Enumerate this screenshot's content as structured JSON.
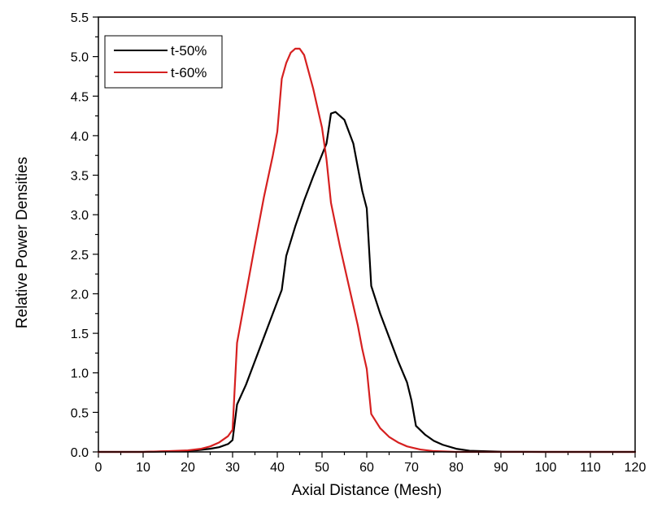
{
  "chart_data": {
    "type": "line",
    "title": "",
    "xlabel": "Axial Distance (Mesh)",
    "ylabel": "Relative Power Densities",
    "xlim": [
      0,
      120
    ],
    "ylim": [
      0,
      5.5
    ],
    "x_ticks": [
      "0",
      "10",
      "20",
      "30",
      "40",
      "50",
      "60",
      "70",
      "80",
      "90",
      "100",
      "110",
      "120"
    ],
    "y_ticks": [
      "0.0",
      "0.5",
      "1.0",
      "1.5",
      "2.0",
      "2.5",
      "3.0",
      "3.5",
      "4.0",
      "4.5",
      "5.0",
      "5.5"
    ],
    "grid": false,
    "legend_position": "top-left",
    "series": [
      {
        "name": "t-50%",
        "color": "#000000",
        "points": [
          [
            0,
            0.0
          ],
          [
            10,
            0.0
          ],
          [
            18,
            0.01
          ],
          [
            22,
            0.02
          ],
          [
            25,
            0.04
          ],
          [
            27,
            0.06
          ],
          [
            29,
            0.1
          ],
          [
            30,
            0.15
          ],
          [
            31,
            0.6
          ],
          [
            33,
            0.85
          ],
          [
            35,
            1.15
          ],
          [
            37,
            1.45
          ],
          [
            39,
            1.75
          ],
          [
            41,
            2.05
          ],
          [
            42,
            2.48
          ],
          [
            44,
            2.85
          ],
          [
            46,
            3.18
          ],
          [
            48,
            3.48
          ],
          [
            50,
            3.76
          ],
          [
            51,
            3.9
          ],
          [
            52,
            4.28
          ],
          [
            53,
            4.3
          ],
          [
            55,
            4.2
          ],
          [
            57,
            3.9
          ],
          [
            58,
            3.6
          ],
          [
            59,
            3.3
          ],
          [
            60,
            3.08
          ],
          [
            61,
            2.1
          ],
          [
            63,
            1.75
          ],
          [
            65,
            1.45
          ],
          [
            67,
            1.15
          ],
          [
            69,
            0.88
          ],
          [
            70,
            0.65
          ],
          [
            71,
            0.33
          ],
          [
            73,
            0.22
          ],
          [
            75,
            0.14
          ],
          [
            77,
            0.09
          ],
          [
            80,
            0.04
          ],
          [
            83,
            0.015
          ],
          [
            90,
            0.003
          ],
          [
            100,
            0.0
          ],
          [
            120,
            0.0
          ]
        ]
      },
      {
        "name": "t-60%",
        "color": "#d62020",
        "points": [
          [
            0,
            0.0
          ],
          [
            10,
            0.0
          ],
          [
            16,
            0.01
          ],
          [
            20,
            0.02
          ],
          [
            23,
            0.04
          ],
          [
            25,
            0.07
          ],
          [
            27,
            0.12
          ],
          [
            29,
            0.2
          ],
          [
            30,
            0.28
          ],
          [
            31,
            1.38
          ],
          [
            33,
            2.0
          ],
          [
            35,
            2.62
          ],
          [
            37,
            3.22
          ],
          [
            39,
            3.75
          ],
          [
            40,
            4.05
          ],
          [
            41,
            4.72
          ],
          [
            42,
            4.92
          ],
          [
            43,
            5.05
          ],
          [
            44,
            5.1
          ],
          [
            45,
            5.1
          ],
          [
            46,
            5.02
          ],
          [
            48,
            4.6
          ],
          [
            50,
            4.1
          ],
          [
            51,
            3.7
          ],
          [
            52,
            3.15
          ],
          [
            54,
            2.6
          ],
          [
            56,
            2.1
          ],
          [
            58,
            1.6
          ],
          [
            59,
            1.3
          ],
          [
            60,
            1.05
          ],
          [
            61,
            0.48
          ],
          [
            63,
            0.3
          ],
          [
            65,
            0.19
          ],
          [
            67,
            0.12
          ],
          [
            69,
            0.07
          ],
          [
            72,
            0.03
          ],
          [
            75,
            0.01
          ],
          [
            80,
            0.0
          ],
          [
            120,
            0.0
          ]
        ]
      }
    ]
  }
}
